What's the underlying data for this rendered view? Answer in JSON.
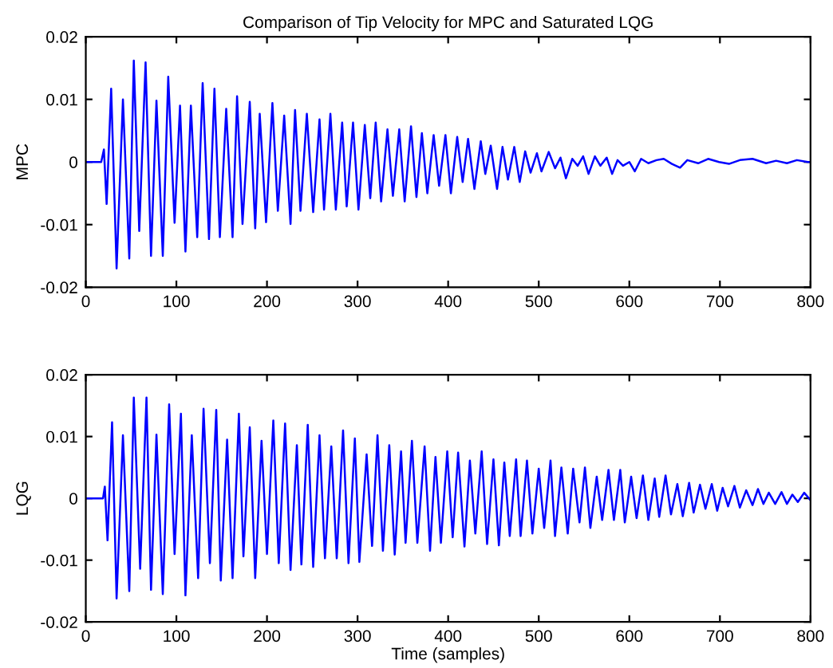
{
  "chart_data": [
    {
      "type": "line",
      "title": "Comparison of Tip Velocity for MPC and Saturated LQG",
      "ylabel": "MPC",
      "xlim": [
        0,
        800
      ],
      "ylim": [
        -0.02,
        0.02
      ],
      "xticks": [
        0,
        100,
        200,
        300,
        400,
        500,
        600,
        700,
        800
      ],
      "yticks": [
        -0.02,
        -0.01,
        0,
        0.01,
        0.02
      ],
      "grid": false,
      "legend": false,
      "series": [
        {
          "color": "#0000ff",
          "x": [
            0,
            17,
            20,
            23,
            28,
            34,
            41,
            48,
            53,
            59,
            66,
            72,
            78,
            85,
            91,
            98,
            104,
            110,
            116,
            123,
            129,
            136,
            142,
            148,
            155,
            162,
            167,
            173,
            181,
            187,
            192,
            199,
            206,
            212,
            219,
            226,
            231,
            237,
            244,
            251,
            258,
            263,
            270,
            276,
            283,
            288,
            295,
            301,
            308,
            314,
            320,
            326,
            333,
            339,
            346,
            352,
            359,
            365,
            371,
            377,
            384,
            390,
            397,
            403,
            410,
            416,
            422,
            429,
            436,
            441,
            447,
            454,
            460,
            466,
            473,
            479,
            485,
            491,
            498,
            503,
            511,
            518,
            524,
            530,
            537,
            543,
            549,
            555,
            562,
            568,
            575,
            581,
            587,
            593,
            600,
            606,
            613,
            621,
            630,
            638,
            647,
            656,
            664,
            676,
            687,
            699,
            710,
            722,
            736,
            751,
            762,
            774,
            785,
            797,
            800
          ],
          "values": [
            0,
            0,
            0.002,
            -0.0067,
            0.0117,
            -0.017,
            0.01,
            -0.0154,
            0.0162,
            -0.011,
            0.0159,
            -0.015,
            0.0098,
            -0.015,
            0.0136,
            -0.0097,
            0.009,
            -0.0143,
            0.009,
            -0.012,
            0.0126,
            -0.0123,
            0.0117,
            -0.012,
            0.0085,
            -0.012,
            0.0105,
            -0.0099,
            0.0096,
            -0.0106,
            0.0077,
            -0.0096,
            0.0094,
            -0.0078,
            0.0074,
            -0.0099,
            0.0083,
            -0.0078,
            0.0077,
            -0.008,
            0.0068,
            -0.0076,
            0.0077,
            -0.0076,
            0.0063,
            -0.0071,
            0.0063,
            -0.0076,
            0.0059,
            -0.0058,
            0.0063,
            -0.0063,
            0.0052,
            -0.0054,
            0.0052,
            -0.0063,
            0.0057,
            -0.0056,
            0.0046,
            -0.005,
            0.0043,
            -0.0038,
            0.0043,
            -0.005,
            0.004,
            -0.0032,
            0.0037,
            -0.0043,
            0.0033,
            -0.0019,
            0.0026,
            -0.0043,
            0.0024,
            -0.0028,
            0.0024,
            -0.0032,
            0.0017,
            -0.0017,
            0.0014,
            -0.0015,
            0.0016,
            -0.001,
            0.0007,
            -0.0026,
            0.0005,
            -0.0006,
            0.0009,
            -0.0019,
            0.0009,
            -0.0006,
            0.0007,
            -0.0019,
            0.0003,
            -0.0006,
            0,
            -0.0015,
            0.0005,
            -0.0002,
            0.0003,
            0.0005,
            -0.0003,
            -0.0009,
            0.0003,
            -0.0002,
            0.0005,
            0,
            -0.0003,
            0.0003,
            0.0005,
            -0.0002,
            0.0002,
            -0.0002,
            0.0003,
            0,
            0
          ]
        }
      ],
      "tick_labels": "xy"
    },
    {
      "type": "line",
      "xlabel": "Time (samples)",
      "ylabel": "LQG",
      "xlim": [
        0,
        800
      ],
      "ylim": [
        -0.02,
        0.02
      ],
      "xticks": [
        0,
        100,
        200,
        300,
        400,
        500,
        600,
        700,
        800
      ],
      "yticks": [
        -0.02,
        -0.01,
        0,
        0.01,
        0.02
      ],
      "grid": false,
      "legend": false,
      "series": [
        {
          "color": "#0000ff",
          "x": [
            0,
            19,
            21,
            24,
            29,
            34,
            41,
            48,
            53,
            60,
            67,
            72,
            78,
            85,
            92,
            98,
            105,
            110,
            117,
            124,
            130,
            137,
            144,
            149,
            156,
            162,
            169,
            174,
            181,
            187,
            194,
            200,
            207,
            213,
            220,
            226,
            233,
            238,
            245,
            251,
            258,
            264,
            271,
            277,
            284,
            290,
            297,
            302,
            310,
            316,
            322,
            328,
            335,
            341,
            348,
            353,
            360,
            366,
            374,
            380,
            386,
            392,
            399,
            405,
            411,
            418,
            424,
            430,
            437,
            443,
            450,
            456,
            462,
            468,
            475,
            480,
            487,
            493,
            500,
            506,
            513,
            518,
            525,
            532,
            538,
            545,
            551,
            557,
            564,
            570,
            577,
            583,
            590,
            595,
            602,
            608,
            615,
            621,
            628,
            633,
            640,
            646,
            653,
            659,
            666,
            671,
            678,
            684,
            691,
            697,
            703,
            709,
            716,
            722,
            729,
            736,
            742,
            748,
            754,
            761,
            768,
            774,
            780,
            786,
            793,
            800
          ],
          "values": [
            0,
            0,
            0.0019,
            -0.0068,
            0.0123,
            -0.0162,
            0.0102,
            -0.015,
            0.0163,
            -0.0114,
            0.0163,
            -0.0148,
            0.0103,
            -0.0155,
            0.0152,
            -0.009,
            0.0137,
            -0.0157,
            0.0102,
            -0.0129,
            0.0145,
            -0.0105,
            0.0143,
            -0.0133,
            0.0095,
            -0.0129,
            0.0137,
            -0.0094,
            0.0115,
            -0.0129,
            0.0093,
            -0.009,
            0.0126,
            -0.0105,
            0.0121,
            -0.0116,
            0.0086,
            -0.0107,
            0.0119,
            -0.0111,
            0.0102,
            -0.0097,
            0.0084,
            -0.0097,
            0.011,
            -0.0105,
            0.0097,
            -0.0103,
            0.0071,
            -0.0077,
            0.0102,
            -0.0085,
            0.0086,
            -0.0091,
            0.0076,
            -0.0072,
            0.0093,
            -0.0072,
            0.0084,
            -0.0085,
            0.0067,
            -0.0072,
            0.0076,
            -0.0063,
            0.0074,
            -0.0078,
            0.0061,
            -0.0057,
            0.0076,
            -0.0074,
            0.0063,
            -0.0076,
            0.0058,
            -0.0061,
            0.0063,
            -0.0061,
            0.0061,
            -0.0057,
            0.0048,
            -0.0048,
            0.0061,
            -0.0061,
            0.005,
            -0.0057,
            0.0048,
            -0.0039,
            0.005,
            -0.0048,
            0.0035,
            -0.0035,
            0.0046,
            -0.0035,
            0.0046,
            -0.0039,
            0.0035,
            -0.0032,
            0.0037,
            -0.0035,
            0.0032,
            -0.003,
            0.0037,
            -0.0026,
            0.0023,
            -0.0029,
            0.0025,
            -0.0023,
            0.0022,
            -0.0017,
            0.0023,
            -0.002,
            0.0017,
            -0.0013,
            0.002,
            -0.0015,
            0.0013,
            -0.0011,
            0.0015,
            -0.0009,
            0.0009,
            -0.0009,
            0.001,
            -0.0009,
            0.0006,
            -0.0006,
            0.0009,
            -0.0003
          ]
        }
      ]
    }
  ]
}
